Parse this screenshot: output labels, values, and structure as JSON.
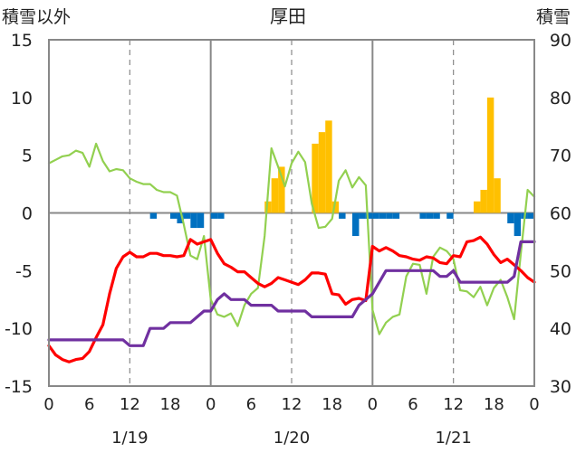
{
  "chart_data": {
    "type": "bar+line",
    "title": "厚田",
    "left_axis_label": "積雪以外",
    "right_axis_label": "積雪",
    "left_ylim": [
      -15,
      15
    ],
    "right_ylim": [
      30,
      90
    ],
    "left_ticks": [
      "-15",
      "-10",
      "-5",
      "0",
      "5",
      "10",
      "15"
    ],
    "right_ticks": [
      "30",
      "40",
      "50",
      "60",
      "70",
      "80",
      "90"
    ],
    "x_hour_labels": [
      "0",
      "6",
      "12",
      "18",
      "0",
      "6",
      "12",
      "18",
      "0",
      "6",
      "12",
      "18",
      "0"
    ],
    "date_labels": [
      "1/19",
      "1/20",
      "1/21"
    ],
    "colors": {
      "temperature": "#ff0000",
      "wind": "#92d050",
      "snow_depth": "#7030a0",
      "precip": "#ffc000",
      "sunshine": "#0070c0",
      "frame": "#888888",
      "grid": "#999999"
    },
    "series": [
      {
        "key": "temperature",
        "axis": "left",
        "x": [
          0,
          1,
          2,
          3,
          4,
          5,
          6,
          7,
          8,
          9,
          10,
          11,
          12,
          13,
          14,
          15,
          16,
          17,
          18,
          19,
          20,
          21,
          22,
          23,
          24,
          25,
          26,
          27,
          28,
          29,
          30,
          31,
          32,
          33,
          34,
          35,
          36,
          37,
          38,
          39,
          40,
          41,
          42,
          43,
          44,
          45,
          46,
          47,
          48,
          49,
          50,
          51,
          52,
          53,
          54,
          55,
          56,
          57,
          58,
          59,
          60,
          61,
          62,
          63,
          64,
          65,
          66,
          67,
          68,
          69,
          70,
          71,
          72
        ],
        "values": [
          -11.5,
          -12.3,
          -12.7,
          -12.9,
          -12.7,
          -12.6,
          -12.0,
          -10.8,
          -9.7,
          -7.0,
          -4.8,
          -3.8,
          -3.4,
          -3.8,
          -3.8,
          -3.5,
          -3.5,
          -3.7,
          -3.7,
          -3.8,
          -3.7,
          -2.3,
          -2.7,
          -2.5,
          -2.3,
          -3.5,
          -4.4,
          -4.7,
          -5.1,
          -5.1,
          -5.6,
          -6.1,
          -6.4,
          -6.1,
          -5.6,
          -5.8,
          -6.0,
          -6.2,
          -5.8,
          -5.2,
          -5.2,
          -5.3,
          -7.0,
          -7.1,
          -7.9,
          -7.5,
          -7.4,
          -7.6,
          -2.9,
          -3.3,
          -3.0,
          -3.3,
          -3.7,
          -3.8,
          -4.0,
          -4.1,
          -3.8,
          -3.9,
          -4.3,
          -4.4,
          -3.7,
          -3.8,
          -2.5,
          -2.4,
          -2.1,
          -2.7,
          -3.6,
          -4.3,
          -4.0,
          -4.5,
          -5.0,
          -5.6,
          -6.0
        ]
      },
      {
        "key": "wind",
        "axis": "left",
        "x": [
          0,
          1,
          2,
          3,
          4,
          5,
          6,
          7,
          8,
          9,
          10,
          11,
          12,
          13,
          14,
          15,
          16,
          17,
          18,
          19,
          20,
          21,
          22,
          23,
          24,
          25,
          26,
          27,
          28,
          29,
          30,
          31,
          32,
          33,
          34,
          35,
          36,
          37,
          38,
          39,
          40,
          41,
          42,
          43,
          44,
          45,
          46,
          47,
          48,
          49,
          50,
          51,
          52,
          53,
          54,
          55,
          56,
          57,
          58,
          59,
          60,
          61,
          62,
          63,
          64,
          65,
          66,
          67,
          68,
          69,
          70,
          71,
          72
        ],
        "values": [
          4.3,
          4.6,
          4.9,
          5.0,
          5.4,
          5.2,
          4.0,
          6.0,
          4.5,
          3.6,
          3.8,
          3.7,
          3.0,
          2.7,
          2.5,
          2.5,
          2.0,
          1.8,
          1.8,
          1.5,
          -1.0,
          -3.7,
          -4.0,
          -2.0,
          -7.5,
          -8.8,
          -9.0,
          -8.7,
          -9.8,
          -8.0,
          -7.0,
          -6.5,
          -2.0,
          5.6,
          4.0,
          2.3,
          4.3,
          5.3,
          4.4,
          0.8,
          -1.3,
          -1.2,
          -0.5,
          2.8,
          3.7,
          2.2,
          3.1,
          2.4,
          -8.4,
          -10.5,
          -9.5,
          -9.0,
          -8.8,
          -5.5,
          -4.4,
          -4.5,
          -7.0,
          -3.8,
          -3.0,
          -3.3,
          -4.0,
          -6.7,
          -6.8,
          -7.3,
          -6.4,
          -8.0,
          -6.5,
          -5.8,
          -7.3,
          -9.2,
          -3.5,
          2.0,
          1.4
        ]
      },
      {
        "key": "snow_depth",
        "axis": "right",
        "x": [
          0,
          1,
          2,
          3,
          4,
          5,
          6,
          7,
          8,
          9,
          10,
          11,
          12,
          13,
          14,
          15,
          16,
          17,
          18,
          19,
          20,
          21,
          22,
          23,
          24,
          25,
          26,
          27,
          28,
          29,
          30,
          31,
          32,
          33,
          34,
          35,
          36,
          37,
          38,
          39,
          40,
          41,
          42,
          43,
          44,
          45,
          46,
          47,
          48,
          49,
          50,
          51,
          52,
          53,
          54,
          55,
          56,
          57,
          58,
          59,
          60,
          61,
          62,
          63,
          64,
          65,
          66,
          67,
          68,
          69,
          70,
          71,
          72
        ],
        "values": [
          38,
          38,
          38,
          38,
          38,
          38,
          38,
          38,
          38,
          38,
          38,
          38,
          37,
          37,
          37,
          40,
          40,
          40,
          41,
          41,
          41,
          41,
          42,
          43,
          43,
          45,
          46,
          45,
          45,
          45,
          44,
          44,
          44,
          44,
          43,
          43,
          43,
          43,
          43,
          42,
          42,
          42,
          42,
          42,
          42,
          42,
          44,
          45,
          46,
          48,
          50,
          50,
          50,
          50,
          50,
          50,
          50,
          50,
          49,
          49,
          50,
          48,
          48,
          48,
          48,
          48,
          48,
          48,
          48,
          49,
          55,
          55,
          55
        ]
      }
    ],
    "bars": [
      {
        "key": "precip",
        "axis": "left",
        "x": [
          33,
          34,
          35,
          40,
          41,
          42,
          43,
          64,
          65,
          66,
          67
        ],
        "values": [
          1,
          3,
          4,
          6,
          7,
          8,
          1,
          1,
          2,
          10,
          3
        ]
      },
      {
        "key": "sunshine",
        "axis": "left",
        "x": [
          16,
          19,
          20,
          21,
          22,
          23,
          25,
          26,
          44,
          46,
          47,
          48,
          49,
          50,
          51,
          52,
          56,
          57,
          58,
          60,
          69,
          70,
          71,
          72
        ],
        "values": [
          -0.5,
          -0.5,
          -0.9,
          -0.5,
          -1.3,
          -1.3,
          -0.5,
          -0.5,
          -0.5,
          -2.0,
          -0.5,
          -0.5,
          -0.5,
          -0.5,
          -0.5,
          -0.5,
          -0.5,
          -0.5,
          -0.5,
          -0.5,
          -0.9,
          -2.0,
          -0.5,
          -0.5
        ]
      }
    ]
  }
}
